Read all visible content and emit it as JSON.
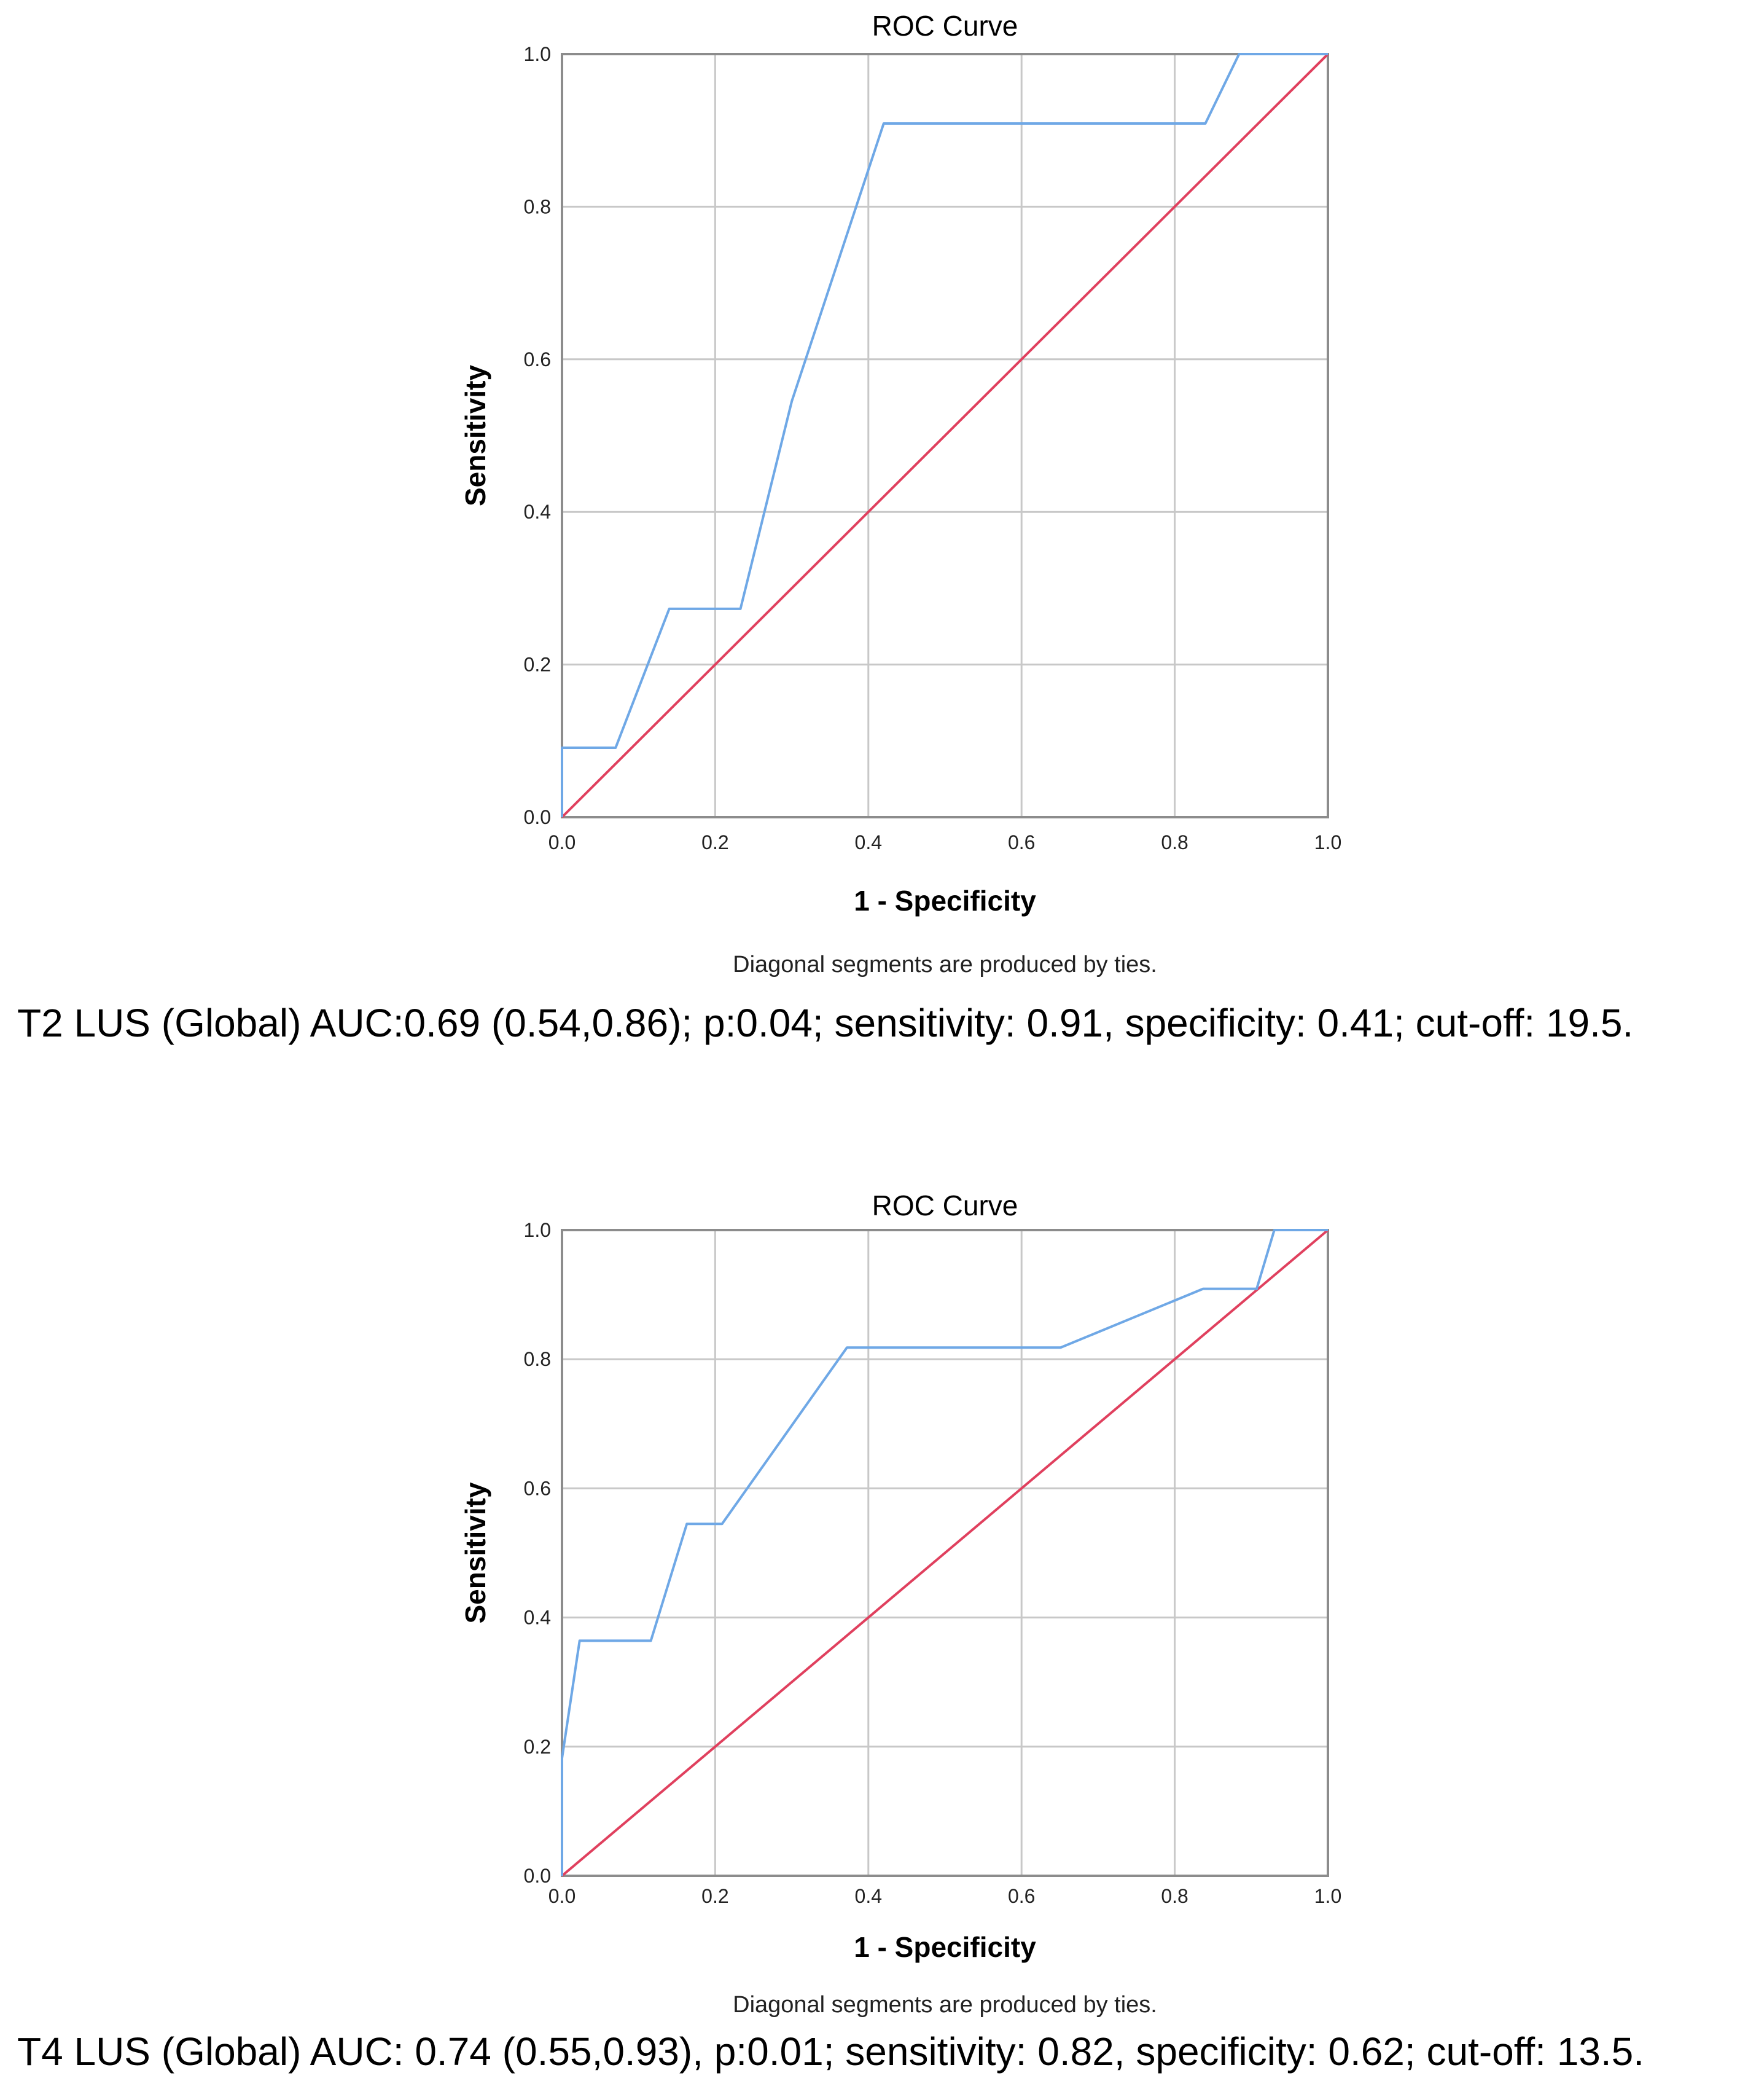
{
  "chart_data": [
    {
      "type": "line",
      "title": "ROC Curve",
      "xlabel": "1 - Specificity",
      "ylabel": "Sensitivity",
      "xlim": [
        0,
        1
      ],
      "ylim": [
        0,
        1
      ],
      "xticks": [
        "0.0",
        "0.2",
        "0.4",
        "0.6",
        "0.8",
        "1.0"
      ],
      "yticks": [
        "0.0",
        "0.2",
        "0.4",
        "0.6",
        "0.8",
        "1.0"
      ],
      "grid": true,
      "footnote": "Diagonal segments are produced by ties.",
      "series": [
        {
          "name": "ROC",
          "color": "#6fa8e6",
          "x": [
            0,
            0,
            0.07,
            0.14,
            0.233,
            0.3,
            0.42,
            0.84,
            0.884,
            1.0
          ],
          "y": [
            0,
            0.091,
            0.091,
            0.273,
            0.273,
            0.545,
            0.909,
            0.909,
            1.0,
            1.0
          ]
        },
        {
          "name": "Reference",
          "color": "#e0405e",
          "x": [
            0,
            1
          ],
          "y": [
            0,
            1
          ]
        }
      ]
    },
    {
      "type": "line",
      "title": "ROC Curve",
      "xlabel": "1 - Specificity",
      "ylabel": "Sensitivity",
      "xlim": [
        0,
        1
      ],
      "ylim": [
        0,
        1
      ],
      "xticks": [
        "0.0",
        "0.2",
        "0.4",
        "0.6",
        "0.8",
        "1.0"
      ],
      "yticks": [
        "0.0",
        "0.2",
        "0.4",
        "0.6",
        "0.8",
        "1.0"
      ],
      "grid": true,
      "footnote": "Diagonal segments are produced by ties.",
      "series": [
        {
          "name": "ROC",
          "color": "#6fa8e6",
          "x": [
            0,
            0,
            0.023,
            0.116,
            0.163,
            0.209,
            0.372,
            0.651,
            0.837,
            0.907,
            0.93,
            1.0
          ],
          "y": [
            0,
            0.182,
            0.364,
            0.364,
            0.545,
            0.545,
            0.818,
            0.818,
            0.909,
            0.909,
            1.0,
            1.0
          ]
        },
        {
          "name": "Reference",
          "color": "#e0405e",
          "x": [
            0,
            1
          ],
          "y": [
            0,
            1
          ]
        }
      ]
    }
  ],
  "captions": [
    "T2 LUS (Global) AUC:0.69 (0.54,0.86); p:0.04; sensitivity: 0.91, specificity: 0.41; cut-off: 19.5.",
    "T4 LUS (Global) AUC: 0.74 (0.55,0.93), p:0.01; sensitivity: 0.82, specificity: 0.62; cut-off: 13.5."
  ]
}
